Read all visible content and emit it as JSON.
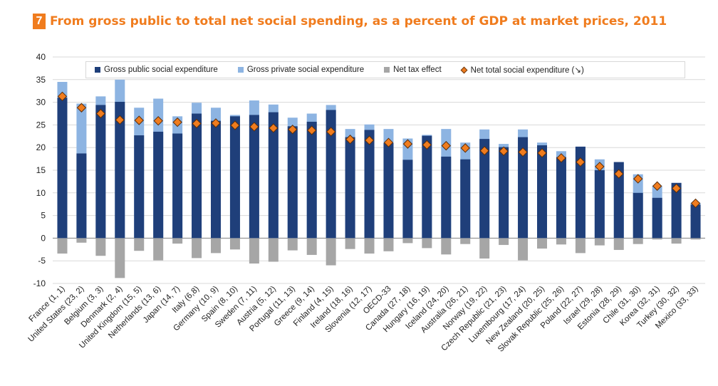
{
  "title": {
    "number": "7",
    "text": "From gross public to total net social spending, as a percent of GDP at market prices, 2011"
  },
  "colors": {
    "gross_public": "#1f3f7a",
    "gross_private": "#8db4e2",
    "net_tax": "#a6a6a6",
    "net_total": "#f07c1e",
    "title": "#f07c1e"
  },
  "chart_data": {
    "type": "bar",
    "ylim": [
      -10,
      40
    ],
    "yticks": [
      40,
      35,
      30,
      25,
      20,
      15,
      10,
      5,
      0,
      -5,
      -10
    ],
    "grid": "horizontal",
    "legend_position": "top",
    "categories": [
      "France (1, 1)",
      "United States (23, 2)",
      "Belgium (3, 3)",
      "Denmark (2, 4)",
      "United Kingdom (15, 5)",
      "Netherlands (13, 6)",
      "Japan (14, 7)",
      "Italy (6,8)",
      "Germany (10, 9)",
      "Spain (8, 10)",
      "Sweden (7, 11)",
      "Austria (5, 12)",
      "Portugal (11, 13)",
      "Greece (9, 14)",
      "Finland (4, 15)",
      "Ireland (18, 16)",
      "Slovenia (12, 17)",
      "OECD-33",
      "Canada (27, 18)",
      "Hungary (16, 19)",
      "Iceland (24, 20)",
      "Australia (26, 21)",
      "Norway (19, 22)",
      "Czech Republic (21, 23)",
      "Luxembourg (17, 24)",
      "New Zealand (20, 25)",
      "Slovak Republic (25, 26)",
      "Poland (22, 27)",
      "Israel (29, 28)",
      "Estonia (28, 29)",
      "Chile (31, 30)",
      "Korea (32, 31)",
      "Turkey (30, 32)",
      "Mexico (33, 33)"
    ],
    "series": [
      {
        "name": "Gross public social expenditure",
        "values": [
          31.0,
          18.7,
          29.4,
          30.1,
          22.7,
          23.5,
          23.1,
          27.5,
          25.9,
          26.9,
          27.2,
          27.8,
          24.7,
          25.7,
          28.3,
          22.3,
          23.9,
          21.0,
          17.3,
          22.6,
          18.0,
          17.4,
          21.9,
          20.1,
          22.3,
          20.5,
          17.9,
          20.2,
          15.0,
          16.8,
          10.0,
          8.9,
          12.2,
          7.4
        ]
      },
      {
        "name": "Gross private social expenditure",
        "values": [
          34.5,
          29.7,
          31.3,
          35.0,
          28.8,
          30.8,
          26.9,
          29.9,
          28.8,
          27.2,
          30.4,
          29.5,
          26.6,
          27.5,
          29.4,
          24.1,
          25.1,
          24.1,
          22.0,
          22.8,
          24.1,
          21.1,
          24.0,
          20.8,
          24.0,
          21.1,
          19.2,
          20.2,
          17.4,
          16.8,
          14.1,
          11.6,
          12.2,
          7.8
        ]
      },
      {
        "name": "Net tax effect",
        "values": [
          -3.4,
          -1.0,
          -3.9,
          -8.8,
          -2.8,
          -4.9,
          -1.2,
          -4.4,
          -3.3,
          -2.5,
          -5.6,
          -5.2,
          -2.7,
          -3.7,
          -6.0,
          -2.4,
          -3.4,
          -2.9,
          -1.1,
          -2.2,
          -3.6,
          -1.3,
          -4.5,
          -1.5,
          -4.9,
          -2.3,
          -1.4,
          -3.3,
          -1.6,
          -2.6,
          -1.3,
          -0.3,
          -1.2,
          -0.3
        ]
      },
      {
        "name": "Net total social expenditure (↘)",
        "values": [
          31.3,
          28.8,
          27.5,
          26.1,
          26.0,
          25.9,
          25.6,
          25.3,
          25.4,
          24.9,
          24.6,
          24.3,
          24.0,
          23.8,
          23.5,
          21.8,
          21.6,
          21.1,
          20.8,
          20.6,
          20.4,
          19.9,
          19.3,
          19.2,
          19.0,
          18.8,
          17.7,
          16.8,
          15.8,
          14.2,
          13.1,
          11.5,
          11.0,
          7.7
        ]
      }
    ]
  },
  "legend": {
    "gross_public": "Gross public social expenditure",
    "gross_private": "Gross private social expenditure",
    "net_tax": "Net tax effect",
    "net_total": "Net total social expenditure (↘)"
  }
}
